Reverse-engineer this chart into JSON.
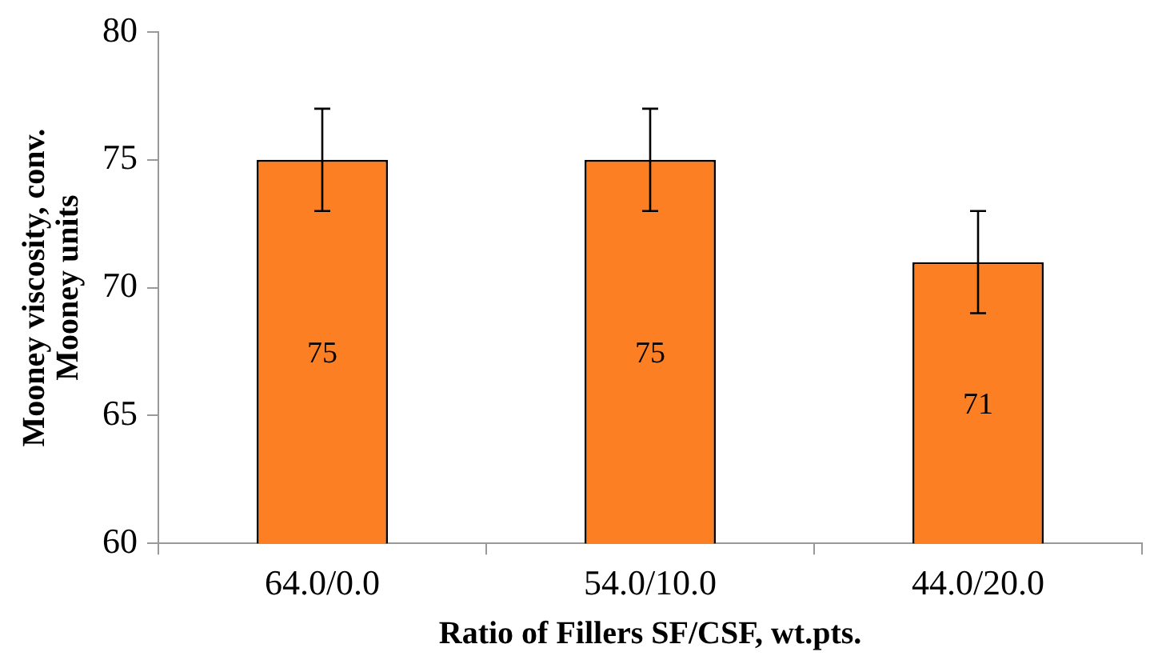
{
  "chart_data": {
    "type": "bar",
    "xlabel": "Ratio of Fillers SF/CSF, wt.pts.",
    "ylabel": "Mooney viscosity, conv. Mooney units",
    "categories": [
      "64.0/0.0",
      "54.0/10.0",
      "44.0/20.0"
    ],
    "values": [
      75,
      75,
      71
    ],
    "errors": [
      2,
      2,
      2
    ],
    "color": "#fd7f23",
    "ylim": [
      60,
      80
    ],
    "yticks": [
      60,
      65,
      70,
      75,
      80
    ],
    "grid": false,
    "legend": false,
    "data_labels": true
  }
}
